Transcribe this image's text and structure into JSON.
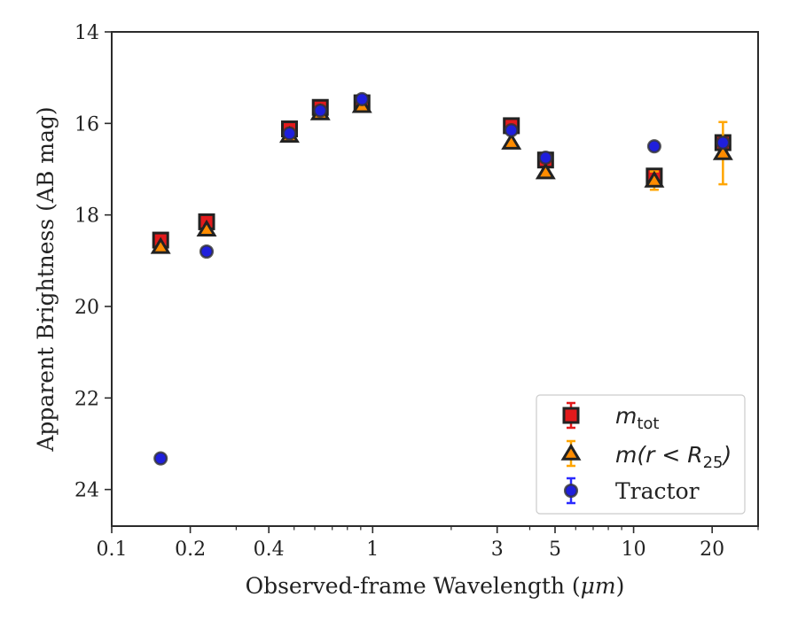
{
  "chart_data": {
    "type": "scatter",
    "xlabel_text": "Observed-frame Wavelength (",
    "xlabel_unit": "μm",
    "xlabel_close": ")",
    "ylabel": "Apparent Brightness (AB mag)",
    "x_scale": "log",
    "y_inverted": true,
    "xlim": [
      0.1,
      30
    ],
    "ylim": [
      24.8,
      14
    ],
    "x_ticks": [
      {
        "value": 0.1,
        "label": "0.1"
      },
      {
        "value": 0.2,
        "label": "0.2"
      },
      {
        "value": 0.4,
        "label": "0.4"
      },
      {
        "value": 1,
        "label": "1"
      },
      {
        "value": 3,
        "label": "3"
      },
      {
        "value": 5,
        "label": "5"
      },
      {
        "value": 10,
        "label": "10"
      },
      {
        "value": 20,
        "label": "20"
      }
    ],
    "y_ticks": [
      {
        "value": 14,
        "label": "14"
      },
      {
        "value": 16,
        "label": "16"
      },
      {
        "value": 18,
        "label": "18"
      },
      {
        "value": 20,
        "label": "20"
      },
      {
        "value": 22,
        "label": "22"
      },
      {
        "value": 24,
        "label": "24"
      }
    ],
    "grid": false,
    "legend_position": "bottom-right",
    "series": [
      {
        "name": "m_tot",
        "legend_main": "m",
        "legend_sub": "tot",
        "marker": "square",
        "color": "#e31a1c",
        "errcolor": "#e31a1c",
        "points": [
          {
            "x": 0.154,
            "y": 18.55,
            "err": 0.05
          },
          {
            "x": 0.231,
            "y": 18.15,
            "err": 0.05
          },
          {
            "x": 0.48,
            "y": 16.12,
            "err": 0.04
          },
          {
            "x": 0.63,
            "y": 15.65,
            "err": 0.04
          },
          {
            "x": 0.91,
            "y": 15.55,
            "err": 0.04
          },
          {
            "x": 3.4,
            "y": 16.05,
            "err": 0.04
          },
          {
            "x": 4.6,
            "y": 16.8,
            "err": 0.05
          },
          {
            "x": 12.0,
            "y": 17.15,
            "err": 0.1
          },
          {
            "x": 22.0,
            "y": 16.42,
            "err": 0.1
          }
        ]
      },
      {
        "name": "m(r<R25)",
        "legend_pre": "m(r < R",
        "legend_sub": "25",
        "legend_post": ")",
        "marker": "triangle",
        "color": "#ff8c00",
        "errcolor": "#ffa500",
        "points": [
          {
            "x": 0.154,
            "y": 18.7,
            "err": 0.05
          },
          {
            "x": 0.231,
            "y": 18.32,
            "err": 0.05
          },
          {
            "x": 0.48,
            "y": 16.27,
            "err": 0.04
          },
          {
            "x": 0.63,
            "y": 15.78,
            "err": 0.04
          },
          {
            "x": 0.91,
            "y": 15.62,
            "err": 0.04
          },
          {
            "x": 3.4,
            "y": 16.42,
            "err": 0.04
          },
          {
            "x": 4.6,
            "y": 17.07,
            "err": 0.05
          },
          {
            "x": 12.0,
            "y": 17.25,
            "err": 0.2
          },
          {
            "x": 22.0,
            "y": 16.65,
            "err": 0.68
          }
        ]
      },
      {
        "name": "Tractor",
        "legend_label": "Tractor",
        "marker": "circle",
        "color": "#1f1fdc",
        "errcolor": "#2a2aff",
        "points": [
          {
            "x": 0.154,
            "y": 23.32,
            "err": 0.05
          },
          {
            "x": 0.231,
            "y": 18.8,
            "err": 0.05
          },
          {
            "x": 0.48,
            "y": 16.22,
            "err": 0.04
          },
          {
            "x": 0.63,
            "y": 15.72,
            "err": 0.04
          },
          {
            "x": 0.91,
            "y": 15.47,
            "err": 0.04
          },
          {
            "x": 3.4,
            "y": 16.15,
            "err": 0.04
          },
          {
            "x": 4.6,
            "y": 16.75,
            "err": 0.05
          },
          {
            "x": 12.0,
            "y": 16.5,
            "err": 0.05
          },
          {
            "x": 22.0,
            "y": 16.42,
            "err": 0.05
          }
        ]
      }
    ]
  }
}
